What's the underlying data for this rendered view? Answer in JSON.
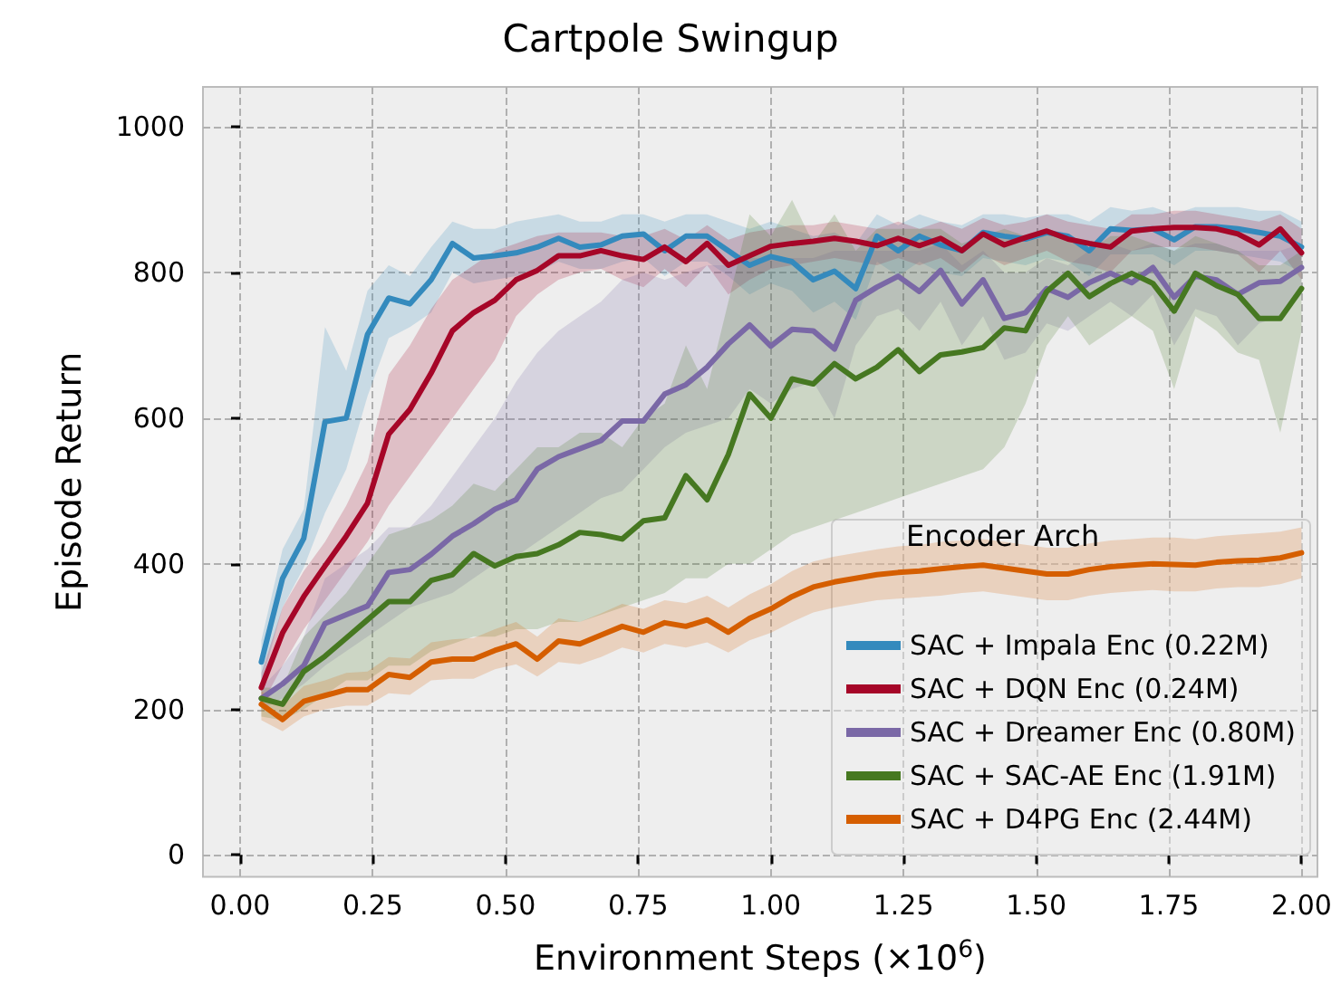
{
  "chart_data": {
    "type": "line",
    "title": "Cartpole Swingup",
    "xlabel": "Environment Steps (×10$^{6}$)",
    "ylabel": "Episode Return",
    "legend_title": "Encoder Arch",
    "legend": "bottom right",
    "grid": true,
    "xlim": [
      -0.07,
      2.03
    ],
    "ylim": [
      -30,
      1055
    ],
    "xticks": [
      {
        "value": 0,
        "label": "0.00"
      },
      0.25,
      {
        "value": 0.5,
        "label": "0.50"
      },
      0.75,
      {
        "value": 1,
        "label": "1.00"
      },
      1.25,
      {
        "value": 1.5,
        "label": "1.50"
      },
      1.75,
      {
        "value": 2,
        "label": "2.00"
      }
    ],
    "yticks": [
      0,
      200,
      400,
      600,
      800,
      1000
    ],
    "x": [
      0.04,
      0.08,
      0.12,
      0.16,
      0.2,
      0.24,
      0.28,
      0.32,
      0.36,
      0.4,
      0.44,
      0.48,
      0.52,
      0.56,
      0.6,
      0.64,
      0.68,
      0.72,
      0.76,
      0.8,
      0.84,
      0.88,
      0.92,
      0.96,
      1.0,
      1.04,
      1.08,
      1.12,
      1.16,
      1.2,
      1.24,
      1.28,
      1.32,
      1.36,
      1.4,
      1.44,
      1.48,
      1.52,
      1.56,
      1.6,
      1.64,
      1.68,
      1.72,
      1.76,
      1.8,
      1.84,
      1.88,
      1.92,
      1.96,
      2.0
    ],
    "series": [
      {
        "name": "SAC + Impala Enc (0.22M)",
        "color": "#348abd",
        "values": [
          265,
          380,
          435,
          595,
          600,
          715,
          765,
          757,
          790,
          840,
          820,
          823,
          827,
          835,
          847,
          835,
          838,
          850,
          853,
          830,
          850,
          850,
          830,
          810,
          822,
          815,
          790,
          802,
          778,
          850,
          830,
          850,
          838,
          830,
          855,
          850,
          846,
          855,
          850,
          830,
          860,
          858,
          860,
          845,
          863,
          863,
          860,
          855,
          850,
          835
        ],
        "lower": [
          235,
          340,
          395,
          470,
          530,
          630,
          710,
          725,
          745,
          800,
          785,
          790,
          795,
          800,
          815,
          805,
          805,
          815,
          820,
          795,
          815,
          815,
          795,
          770,
          785,
          775,
          745,
          760,
          735,
          815,
          795,
          815,
          800,
          795,
          820,
          815,
          810,
          820,
          815,
          795,
          825,
          825,
          825,
          810,
          830,
          830,
          825,
          820,
          815,
          800
        ],
        "upper": [
          295,
          420,
          475,
          725,
          665,
          775,
          810,
          795,
          835,
          870,
          860,
          860,
          870,
          875,
          880,
          870,
          870,
          880,
          880,
          870,
          880,
          880,
          870,
          860,
          870,
          860,
          850,
          855,
          840,
          880,
          865,
          880,
          870,
          865,
          880,
          880,
          875,
          880,
          880,
          870,
          890,
          885,
          890,
          880,
          890,
          890,
          890,
          885,
          885,
          870
        ]
      },
      {
        "name": "SAC + DQN Enc (0.24M)",
        "color": "#a60628",
        "values": [
          230,
          305,
          355,
          397,
          438,
          483,
          578,
          612,
          662,
          720,
          745,
          762,
          790,
          803,
          823,
          823,
          830,
          823,
          818,
          835,
          815,
          840,
          810,
          823,
          836,
          840,
          843,
          847,
          843,
          837,
          847,
          837,
          847,
          830,
          853,
          838,
          848,
          857,
          846,
          840,
          835,
          857,
          860,
          862,
          862,
          860,
          853,
          838,
          860,
          827
        ],
        "lower": [
          205,
          260,
          310,
          350,
          390,
          430,
          480,
          520,
          560,
          600,
          640,
          680,
          740,
          770,
          790,
          800,
          805,
          790,
          780,
          805,
          780,
          810,
          770,
          790,
          805,
          810,
          815,
          820,
          815,
          810,
          820,
          810,
          820,
          800,
          825,
          810,
          820,
          830,
          815,
          810,
          800,
          830,
          835,
          835,
          835,
          830,
          825,
          800,
          830,
          790
        ],
        "upper": [
          250,
          340,
          390,
          430,
          480,
          540,
          660,
          700,
          750,
          790,
          810,
          830,
          840,
          850,
          855,
          855,
          855,
          850,
          850,
          860,
          845,
          865,
          845,
          855,
          860,
          865,
          865,
          870,
          865,
          860,
          870,
          860,
          870,
          860,
          875,
          865,
          870,
          880,
          870,
          865,
          860,
          880,
          880,
          885,
          885,
          880,
          875,
          870,
          880,
          860
        ]
      },
      {
        "name": "SAC + Dreamer Enc (0.80M)",
        "color": "#7a68a6",
        "values": [
          215,
          235,
          260,
          318,
          330,
          342,
          388,
          392,
          413,
          438,
          455,
          475,
          488,
          530,
          547,
          558,
          569,
          596,
          596,
          633,
          646,
          670,
          702,
          728,
          699,
          722,
          720,
          695,
          762,
          780,
          795,
          774,
          803,
          757,
          790,
          737,
          745,
          778,
          766,
          786,
          799,
          786,
          807,
          766,
          795,
          790,
          770,
          786,
          788,
          807
        ],
        "lower": [
          200,
          215,
          235,
          260,
          280,
          300,
          320,
          340,
          350,
          360,
          380,
          400,
          410,
          430,
          450,
          470,
          490,
          500,
          530,
          560,
          580,
          590,
          600,
          640,
          620,
          640,
          650,
          600,
          700,
          740,
          750,
          720,
          760,
          700,
          740,
          680,
          690,
          730,
          720,
          740,
          760,
          740,
          770,
          700,
          750,
          740,
          700,
          730,
          740,
          770
        ],
        "upper": [
          230,
          260,
          300,
          380,
          400,
          420,
          450,
          450,
          480,
          520,
          560,
          600,
          650,
          690,
          720,
          740,
          760,
          790,
          800,
          790,
          800,
          810,
          810,
          820,
          820,
          820,
          820,
          830,
          830,
          830,
          830,
          830,
          840,
          810,
          830,
          800,
          800,
          820,
          810,
          830,
          840,
          830,
          840,
          830,
          840,
          840,
          830,
          830,
          830,
          840
        ]
      },
      {
        "name": "SAC + SAC-AE Enc (1.91M)",
        "color": "#467821",
        "values": [
          215,
          207,
          252,
          273,
          298,
          323,
          348,
          348,
          377,
          385,
          414,
          397,
          410,
          414,
          426,
          443,
          440,
          434,
          459,
          463,
          521,
          488,
          550,
          633,
          600,
          654,
          647,
          675,
          654,
          670,
          694,
          664,
          687,
          691,
          697,
          724,
          720,
          774,
          799,
          767,
          785,
          799,
          785,
          747,
          799,
          782,
          770,
          737,
          737,
          778
        ],
        "lower": [
          190,
          185,
          200,
          220,
          240,
          240,
          260,
          260,
          280,
          290,
          300,
          300,
          310,
          310,
          320,
          320,
          330,
          340,
          350,
          360,
          380,
          380,
          400,
          400,
          420,
          440,
          450,
          460,
          470,
          480,
          490,
          500,
          510,
          520,
          530,
          560,
          620,
          700,
          740,
          700,
          720,
          740,
          720,
          640,
          740,
          720,
          690,
          680,
          580,
          720
        ],
        "upper": [
          230,
          230,
          300,
          330,
          360,
          400,
          440,
          450,
          460,
          480,
          510,
          500,
          530,
          560,
          560,
          580,
          580,
          560,
          600,
          620,
          700,
          640,
          760,
          880,
          850,
          900,
          840,
          880,
          830,
          860,
          860,
          860,
          860,
          840,
          850,
          860,
          850,
          860,
          850,
          830,
          850,
          850,
          840,
          830,
          850,
          840,
          830,
          810,
          810,
          830
        ]
      },
      {
        "name": "SAC + D4PG Enc (2.44M)",
        "color": "#d55e00",
        "values": [
          207,
          186,
          211,
          219,
          227,
          227,
          248,
          244,
          265,
          269,
          269,
          281,
          290,
          269,
          294,
          290,
          302,
          314,
          306,
          319,
          314,
          323,
          306,
          325,
          338,
          355,
          368,
          375,
          380,
          385,
          388,
          390,
          393,
          396,
          398,
          394,
          390,
          386,
          386,
          392,
          396,
          398,
          400,
          399,
          398,
          402,
          404,
          405,
          408,
          415
        ],
        "lower": [
          185,
          170,
          190,
          200,
          205,
          205,
          222,
          220,
          240,
          242,
          242,
          255,
          262,
          245,
          265,
          262,
          272,
          285,
          278,
          290,
          285,
          292,
          278,
          295,
          305,
          320,
          333,
          340,
          345,
          350,
          352,
          354,
          356,
          360,
          362,
          358,
          354,
          350,
          350,
          356,
          360,
          362,
          364,
          362,
          362,
          366,
          368,
          368,
          372,
          380
        ],
        "upper": [
          225,
          205,
          232,
          240,
          250,
          252,
          272,
          270,
          292,
          296,
          298,
          310,
          320,
          300,
          325,
          320,
          332,
          345,
          338,
          350,
          346,
          356,
          340,
          358,
          372,
          390,
          403,
          410,
          415,
          420,
          424,
          426,
          430,
          432,
          434,
          430,
          426,
          422,
          422,
          428,
          432,
          434,
          436,
          436,
          434,
          438,
          440,
          442,
          444,
          450
        ]
      }
    ]
  }
}
